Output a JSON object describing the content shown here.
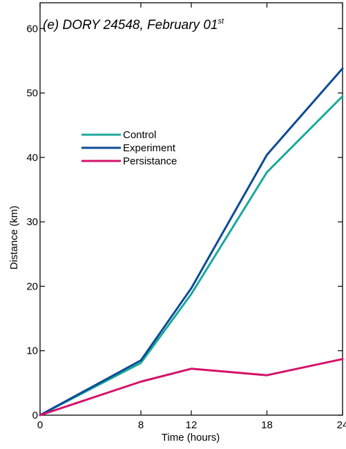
{
  "chart_data": {
    "type": "line",
    "title": "(e) DORY 24548, February 01",
    "title_superscript": "st",
    "xlabel": "Time (hours)",
    "ylabel": "Distance (km)",
    "x": [
      0,
      8,
      12,
      18,
      24
    ],
    "x_ticks": [
      0,
      8,
      12,
      18,
      24
    ],
    "y_ticks": [
      0,
      10,
      20,
      30,
      40,
      50,
      60
    ],
    "xlim": [
      0,
      24
    ],
    "ylim": [
      0,
      64
    ],
    "grid": false,
    "legend_position": "upper-left",
    "series": [
      {
        "name": "Control",
        "color": "#1aa89a",
        "values": [
          0,
          8.1,
          18.8,
          37.7,
          49.5
        ]
      },
      {
        "name": "Experiment",
        "color": "#0b4a96",
        "values": [
          0,
          8.5,
          19.7,
          40.4,
          53.8
        ]
      },
      {
        "name": "Persistance",
        "color": "#d6106a",
        "values": [
          0,
          5.2,
          7.2,
          6.2,
          8.7
        ]
      }
    ]
  }
}
